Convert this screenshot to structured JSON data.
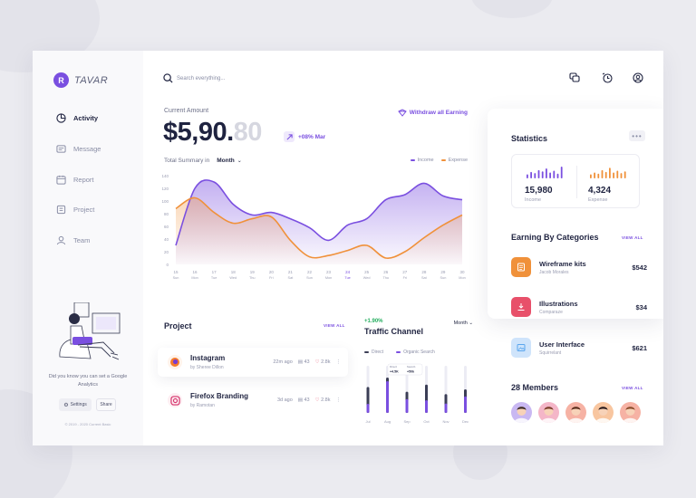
{
  "logo": {
    "mark": "R",
    "name": "TAVAR",
    "icon": "logo-icon"
  },
  "nav": [
    {
      "label": "Activity",
      "icon": "activity-icon",
      "active": true
    },
    {
      "label": "Message",
      "icon": "message-icon",
      "active": false
    },
    {
      "label": "Report",
      "icon": "report-icon",
      "active": false
    },
    {
      "label": "Project",
      "icon": "project-icon",
      "active": false
    },
    {
      "label": "Team",
      "icon": "team-icon",
      "active": false
    }
  ],
  "promo": {
    "text": "Did you know you can set a Google Analytics",
    "settings_label": "Settings",
    "share_label": "Share",
    "copyright": "© 2019 - 2020 Current Basic"
  },
  "header": {
    "search_placeholder": "Search everything...",
    "icons": [
      "chat-icon",
      "clock-icon",
      "user-icon"
    ]
  },
  "summary": {
    "label": "Current Amount",
    "amount_main": "$5,90.",
    "amount_fade": "80",
    "growth": "+08% Mar",
    "withdraw_label": "Withdraw all Earning",
    "total_label": "Total Summary in",
    "period": "Month",
    "income_label": "Income",
    "expense_label": "Expense",
    "colors": {
      "income": "#7a4fe0",
      "expense": "#f0913a"
    }
  },
  "chart_data": {
    "type": "area",
    "x": [
      "15",
      "16",
      "17",
      "18",
      "19",
      "20",
      "21",
      "22",
      "23",
      "24",
      "25",
      "26",
      "27",
      "28",
      "29",
      "30"
    ],
    "x_days": [
      "Sun",
      "Mon",
      "Tue",
      "Wed",
      "Thu",
      "Fri",
      "Sat",
      "Sun",
      "Mon",
      "Tue",
      "Wed",
      "Thu",
      "Fri",
      "Sat",
      "Sun",
      "Mon"
    ],
    "highlight_index": 9,
    "yticks": [
      0,
      20,
      40,
      60,
      80,
      100,
      120,
      140
    ],
    "ylim": [
      0,
      140
    ],
    "series": [
      {
        "name": "Income",
        "values": [
          30,
          120,
          130,
          95,
          78,
          82,
          72,
          58,
          38,
          62,
          72,
          102,
          110,
          128,
          108,
          102
        ]
      },
      {
        "name": "Expense",
        "values": [
          88,
          105,
          82,
          65,
          72,
          75,
          38,
          12,
          14,
          22,
          30,
          10,
          20,
          42,
          62,
          78
        ]
      }
    ]
  },
  "project": {
    "title": "Project",
    "view_all": "VIEW ALL",
    "items": [
      {
        "name": "Instagram",
        "by": "by Sheree Dillon",
        "time": "22m ago",
        "files": "43",
        "likes": "2.8k",
        "icon": "firefox-icon"
      },
      {
        "name": "Firefox Branding",
        "by": "by Ramotan",
        "time": "3d ago",
        "files": "43",
        "likes": "2.8k",
        "icon": "instagram-icon"
      }
    ]
  },
  "traffic": {
    "growth": "+1.90%",
    "title": "Traffic Channel",
    "period": "Month",
    "direct_label": "Direct",
    "organic_label": "Organic Search",
    "colors": {
      "direct": "#3b3e56",
      "organic": "#7a4fe0"
    },
    "months": [
      "Jul",
      "Aug",
      "Sep",
      "Oct",
      "Nov",
      "Dec"
    ],
    "direct": [
      0.55,
      0.75,
      0.45,
      0.6,
      0.4,
      0.5
    ],
    "organic": [
      0.35,
      0.9,
      0.65,
      0.45,
      0.5,
      0.7
    ],
    "tooltip_direct_label": "Direct",
    "tooltip_direct_value": "+4.5K",
    "tooltip_search_label": "Search",
    "tooltip_search_value": "+50k"
  },
  "statistics": {
    "title": "Statistics",
    "more": "•••",
    "income_value": "15,980",
    "income_label": "Income",
    "expense_value": "4,324",
    "expense_label": "Expense",
    "income_bars": [
      0.35,
      0.55,
      0.45,
      0.7,
      0.6,
      0.85,
      0.5,
      0.65,
      0.4,
      1.0
    ],
    "expense_bars": [
      0.35,
      0.5,
      0.4,
      0.7,
      0.55,
      0.9,
      0.5,
      0.65,
      0.45,
      0.6
    ]
  },
  "categories": {
    "title": "Earning By Categories",
    "view_all": "VIEW ALL",
    "items": [
      {
        "name": "Wireframe kits",
        "author": "Jacob Morales",
        "amount": "$542",
        "color": "#f0913a",
        "icon": "document-icon"
      },
      {
        "name": "Illustrations",
        "author": "Comparaze",
        "amount": "$34",
        "color": "#e8506a",
        "icon": "download-icon"
      },
      {
        "name": "User Interface",
        "author": "Squirrelant",
        "amount": "$621",
        "color": "#5aa6ee",
        "icon": "image-icon"
      }
    ]
  },
  "members": {
    "title": "28 Members",
    "view_all": "VIEW ALL",
    "avatars": [
      {
        "bg": "#c9b8f2",
        "hair": "#3a2a2a"
      },
      {
        "bg": "#f4b6c8",
        "hair": "#7a3a2a"
      },
      {
        "bg": "#f6b2a4",
        "hair": "#5a2a1a"
      },
      {
        "bg": "#f8c6a0",
        "hair": "#2a1a1a"
      },
      {
        "bg": "#f6b2a4",
        "hair": "#8a4a2a"
      }
    ]
  }
}
